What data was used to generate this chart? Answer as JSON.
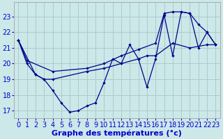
{
  "xlabel": "Graphe des températures (°c)",
  "bg_color": "#cce8e8",
  "line_color": "#00008b",
  "grid_color": "#aacccc",
  "text_color": "#0000cc",
  "yticks": [
    17,
    18,
    19,
    20,
    21,
    22,
    23
  ],
  "xticks": [
    0,
    1,
    2,
    3,
    4,
    5,
    6,
    7,
    8,
    9,
    10,
    11,
    12,
    13,
    14,
    15,
    16,
    17,
    18,
    19,
    20,
    21,
    22,
    23
  ],
  "ylim": [
    16.5,
    23.9
  ],
  "xlim": [
    -0.5,
    23.5
  ],
  "series1_x": [
    0,
    1,
    2,
    3,
    4,
    5,
    6,
    7,
    8,
    9,
    10,
    11,
    12,
    13,
    14,
    15,
    16,
    17,
    18,
    19,
    20,
    21,
    22,
    23
  ],
  "series1_y": [
    21.5,
    20.0,
    19.3,
    19.0,
    18.3,
    17.5,
    16.9,
    17.0,
    17.3,
    17.5,
    18.8,
    20.3,
    20.0,
    21.2,
    20.3,
    18.5,
    20.3,
    23.1,
    20.5,
    23.3,
    23.2,
    21.0,
    22.0,
    21.2
  ],
  "series2_x": [
    0,
    1,
    4,
    8,
    10,
    12,
    14,
    16,
    17,
    18,
    19,
    20,
    21,
    22,
    23
  ],
  "series2_y": [
    21.5,
    20.2,
    19.5,
    19.7,
    20.0,
    20.5,
    20.9,
    21.3,
    23.2,
    23.3,
    23.3,
    23.2,
    22.5,
    22.0,
    21.2
  ],
  "series3_x": [
    0,
    2,
    3,
    4,
    8,
    10,
    12,
    14,
    15,
    16,
    18,
    20,
    22,
    23
  ],
  "series3_y": [
    21.5,
    19.3,
    19.0,
    19.0,
    19.5,
    19.7,
    20.0,
    20.3,
    20.5,
    20.5,
    21.3,
    21.0,
    21.2,
    21.2
  ],
  "tick_fontsize": 7.0,
  "xlabel_fontsize": 8.0
}
